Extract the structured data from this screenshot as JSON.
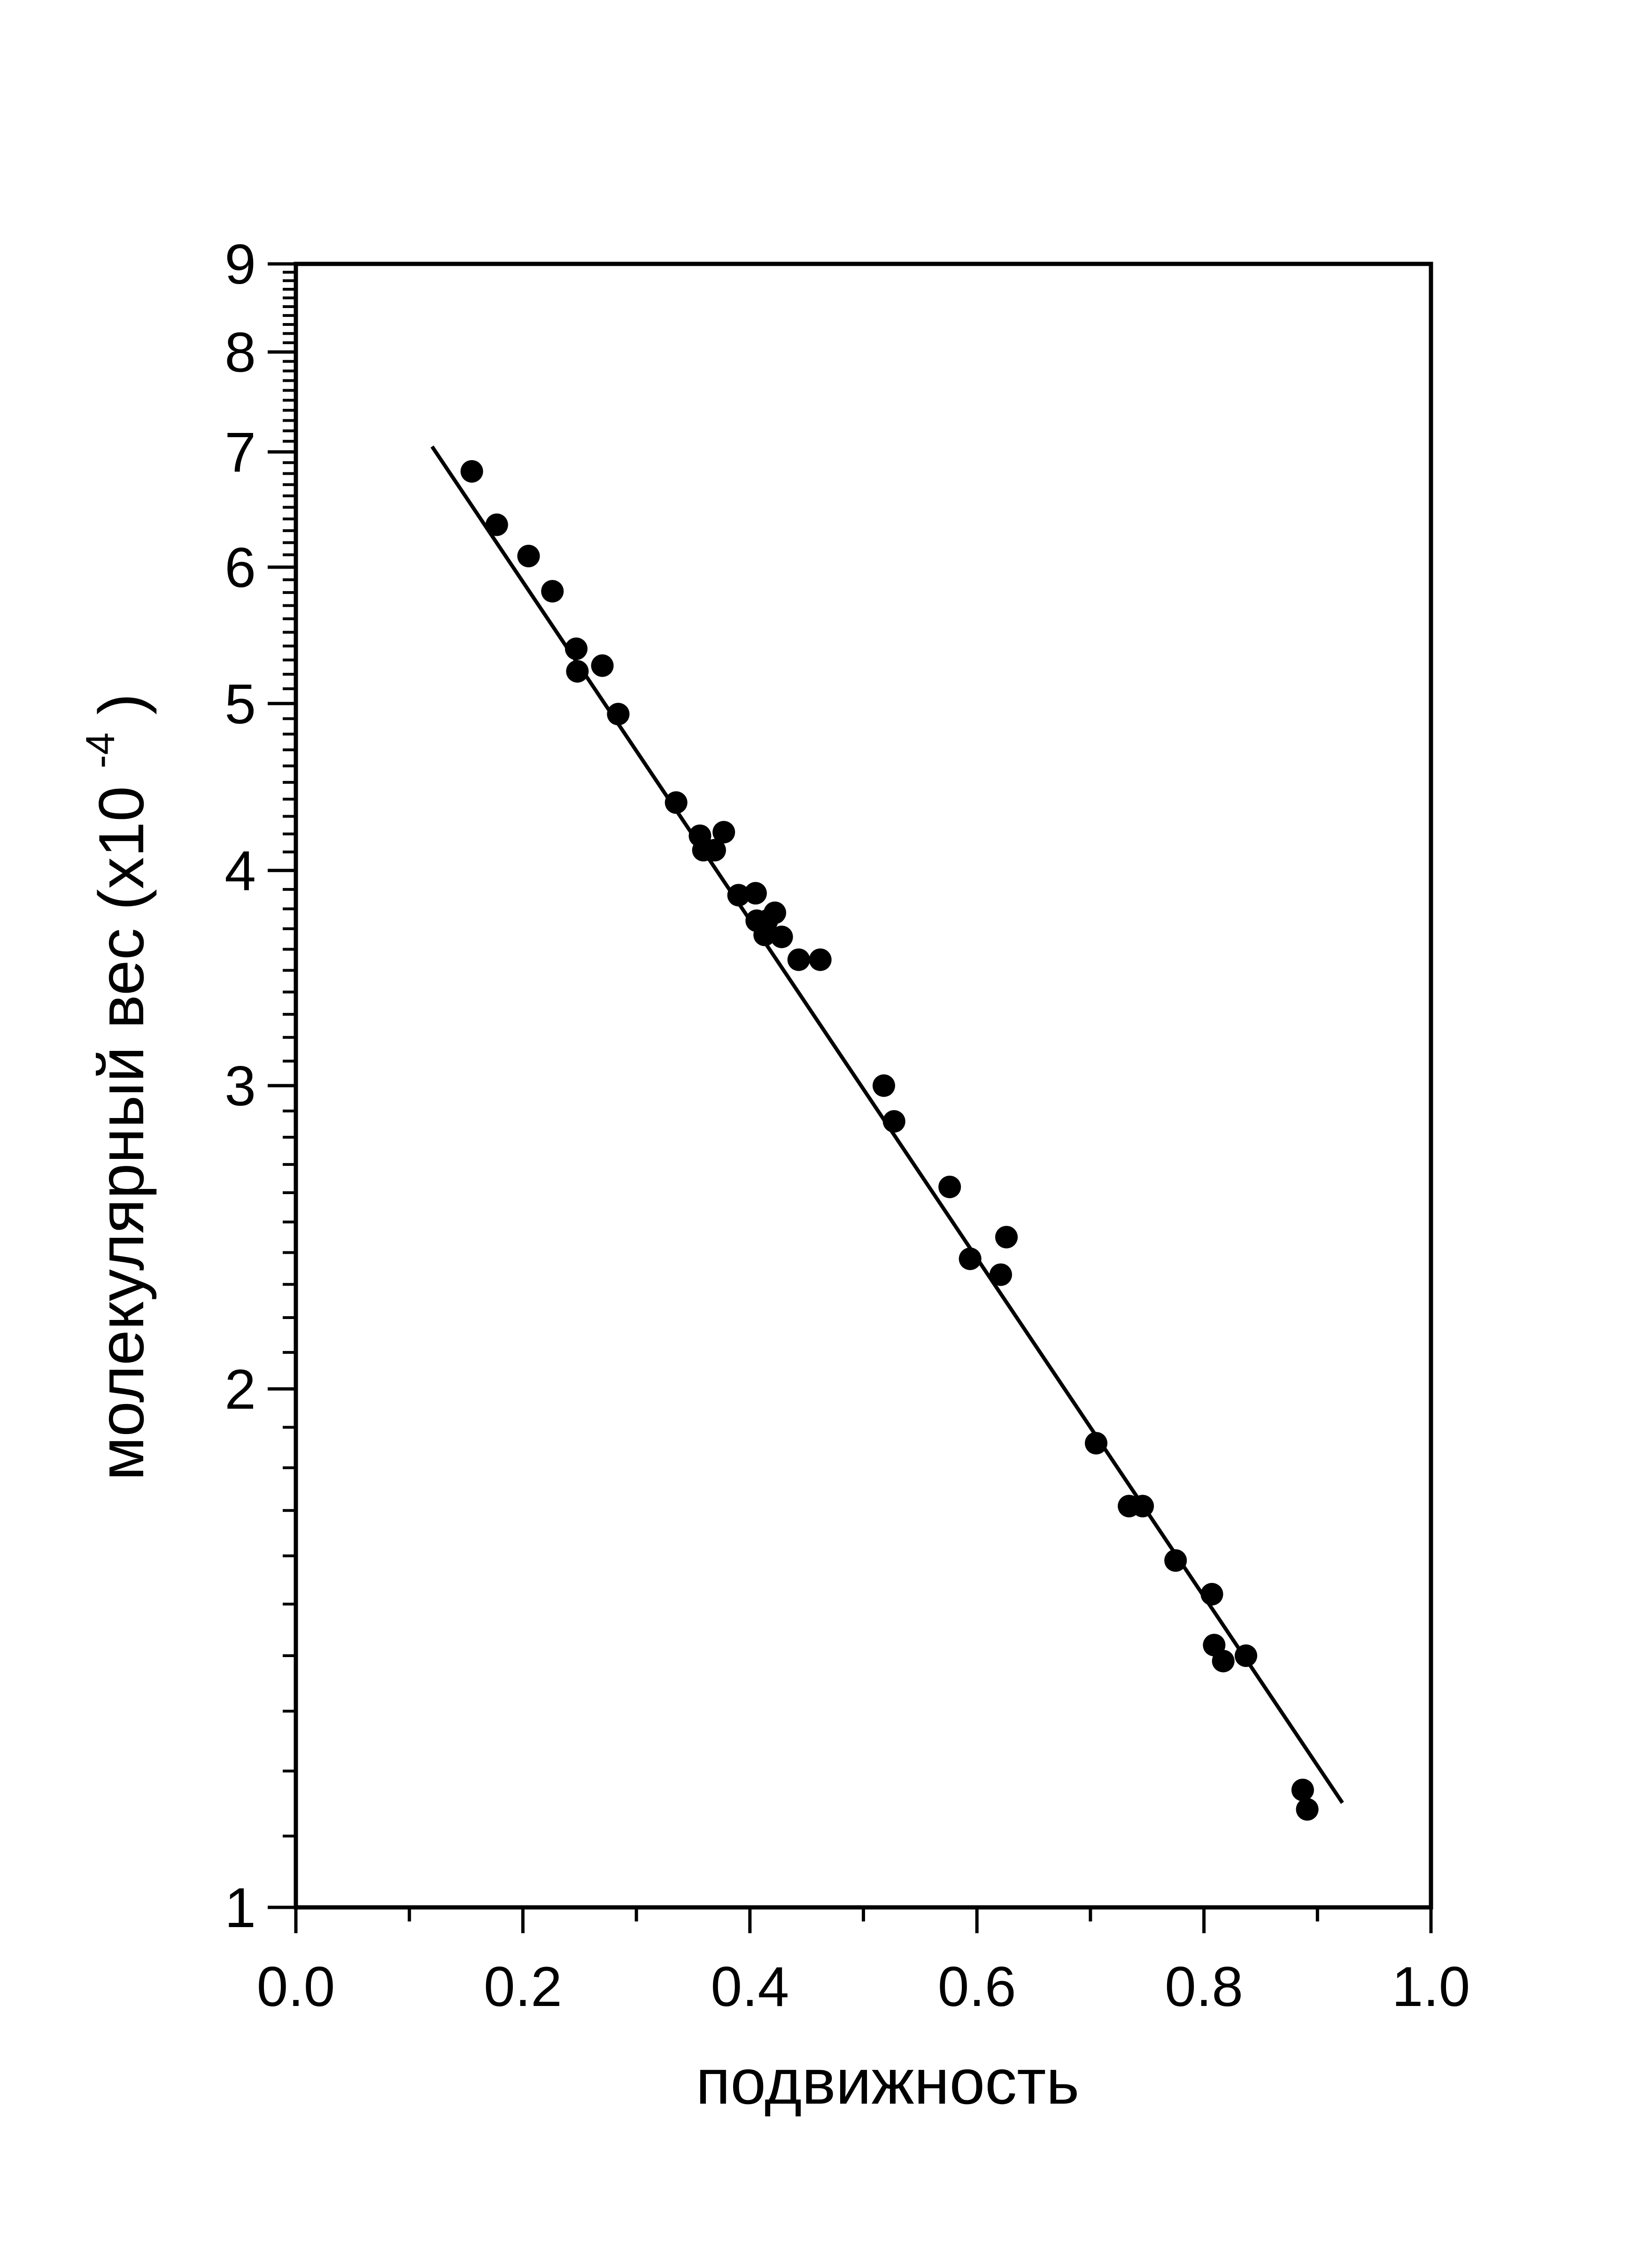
{
  "colors": {
    "ink": "#000000",
    "background": "#ffffff"
  },
  "chart_data": {
    "type": "scatter",
    "xlabel": "подвижность",
    "ylabel": "молекулярный вес",
    "ylabel_suffix_base": "(x10",
    "ylabel_suffix_exp": "-4",
    "ylabel_suffix_close": ")",
    "xlim": [
      0.0,
      1.0
    ],
    "ylim": [
      1,
      9
    ],
    "yscale": "log",
    "grid": false,
    "legend": "none",
    "x_ticks": [
      "0.0",
      "0.2",
      "0.4",
      "0.6",
      "0.8",
      "1.0"
    ],
    "x_tick_values": [
      0.0,
      0.2,
      0.4,
      0.6,
      0.8,
      1.0
    ],
    "y_ticks": [
      "1",
      "2",
      "3",
      "4",
      "5",
      "6",
      "7",
      "8",
      "9"
    ],
    "y_tick_values": [
      1,
      2,
      3,
      4,
      5,
      6,
      7,
      8,
      9
    ],
    "series": [
      {
        "kind": "points",
        "marker": "filled-circle",
        "x": [
          0.155,
          0.177,
          0.205,
          0.226,
          0.247,
          0.248,
          0.27,
          0.284,
          0.335,
          0.356,
          0.359,
          0.369,
          0.377,
          0.39,
          0.405,
          0.406,
          0.413,
          0.415,
          0.422,
          0.428,
          0.443,
          0.462,
          0.518,
          0.527,
          0.576,
          0.594,
          0.621,
          0.626,
          0.705,
          0.734,
          0.746,
          0.775,
          0.807,
          0.809,
          0.817,
          0.837,
          0.887,
          0.891
        ],
        "y": [
          6.82,
          6.35,
          6.09,
          5.81,
          5.38,
          5.22,
          5.26,
          4.93,
          4.38,
          4.19,
          4.11,
          4.11,
          4.21,
          3.87,
          3.88,
          3.74,
          3.67,
          3.74,
          3.78,
          3.66,
          3.55,
          3.55,
          3.0,
          2.86,
          2.62,
          2.38,
          2.33,
          2.45,
          1.86,
          1.71,
          1.71,
          1.59,
          1.52,
          1.42,
          1.39,
          1.4,
          1.17,
          1.14
        ]
      },
      {
        "kind": "fit-line",
        "x": [
          0.12,
          0.922
        ],
        "y": [
          7.05,
          1.15
        ]
      }
    ]
  }
}
